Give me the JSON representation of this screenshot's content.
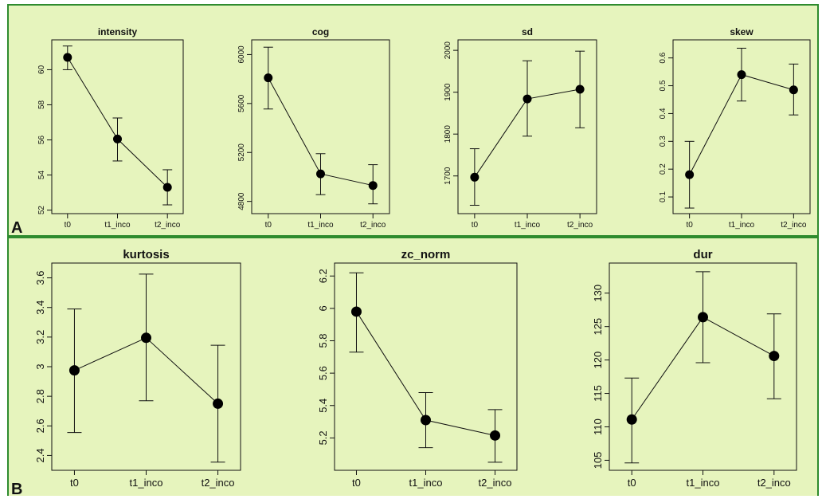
{
  "panel_labels": {
    "a": "A",
    "b": "B"
  },
  "colors": {
    "background": "#e6f4bd",
    "border": "#2e8b2e",
    "ink": "#111111"
  },
  "chart_data": [
    {
      "type": "line",
      "title": "intensity",
      "categories": [
        "t0",
        "t1_inco",
        "t2_inco"
      ],
      "values": [
        60.7,
        56.05,
        53.3
      ],
      "error_low": [
        60.0,
        54.8,
        52.3
      ],
      "error_high": [
        61.35,
        57.25,
        54.3
      ],
      "ylim": [
        51.8,
        61.7
      ],
      "yticks": [
        52,
        54,
        56,
        58,
        60
      ],
      "xlabel": "",
      "ylabel": "",
      "grid": false
    },
    {
      "type": "line",
      "title": "cog",
      "categories": [
        "t0",
        "t1_inco",
        "t2_inco"
      ],
      "values": [
        5810,
        5025,
        4930
      ],
      "error_low": [
        5555,
        4855,
        4780
      ],
      "error_high": [
        6060,
        5190,
        5100
      ],
      "ylim": [
        4700,
        6120
      ],
      "yticks": [
        4800,
        5200,
        5600,
        6000
      ],
      "xlabel": "",
      "ylabel": "",
      "grid": false
    },
    {
      "type": "line",
      "title": "sd",
      "categories": [
        "t0",
        "t1_inco",
        "t2_inco"
      ],
      "values": [
        1697,
        1884,
        1907
      ],
      "error_low": [
        1630,
        1795,
        1815
      ],
      "error_high": [
        1765,
        1975,
        1998
      ],
      "ylim": [
        1610,
        2025
      ],
      "yticks": [
        1700,
        1800,
        1900,
        2000
      ],
      "xlabel": "",
      "ylabel": "",
      "grid": false
    },
    {
      "type": "line",
      "title": "skew",
      "categories": [
        "t0",
        "t1_inco",
        "t2_inco"
      ],
      "values": [
        0.18,
        0.54,
        0.485
      ],
      "error_low": [
        0.06,
        0.445,
        0.395
      ],
      "error_high": [
        0.3,
        0.635,
        0.578
      ],
      "ylim": [
        0.04,
        0.665
      ],
      "yticks": [
        0.1,
        0.2,
        0.3,
        0.4,
        0.5,
        0.6
      ],
      "xlabel": "",
      "ylabel": "",
      "grid": false
    },
    {
      "type": "line",
      "title": "kurtosis",
      "categories": [
        "t0",
        "t1_inco",
        "t2_inco"
      ],
      "values": [
        2.975,
        3.195,
        2.75
      ],
      "error_low": [
        2.555,
        2.77,
        2.355
      ],
      "error_high": [
        3.39,
        3.625,
        3.145
      ],
      "ylim": [
        2.3,
        3.7
      ],
      "yticks": [
        2.4,
        2.6,
        2.8,
        3.0,
        3.2,
        3.4,
        3.6
      ],
      "xlabel": "",
      "ylabel": "",
      "grid": false
    },
    {
      "type": "line",
      "title": "zc_norm",
      "categories": [
        "t0",
        "t1_inco",
        "t2_inco"
      ],
      "values": [
        5.98,
        5.31,
        5.215
      ],
      "error_low": [
        5.73,
        5.14,
        5.05
      ],
      "error_high": [
        6.22,
        5.48,
        5.375
      ],
      "ylim": [
        5.0,
        6.28
      ],
      "yticks": [
        5.2,
        5.4,
        5.6,
        5.8,
        6.0,
        6.2
      ],
      "xlabel": "",
      "ylabel": "",
      "grid": false
    },
    {
      "type": "line",
      "title": "dur",
      "categories": [
        "t0",
        "t1_inco",
        "t2_inco"
      ],
      "values": [
        111.1,
        126.4,
        120.6
      ],
      "error_low": [
        104.6,
        119.6,
        114.2
      ],
      "error_high": [
        117.3,
        133.2,
        126.9
      ],
      "ylim": [
        103.5,
        134.5
      ],
      "yticks": [
        105,
        110,
        115,
        120,
        125,
        130
      ],
      "xlabel": "",
      "ylabel": "",
      "grid": false
    }
  ]
}
